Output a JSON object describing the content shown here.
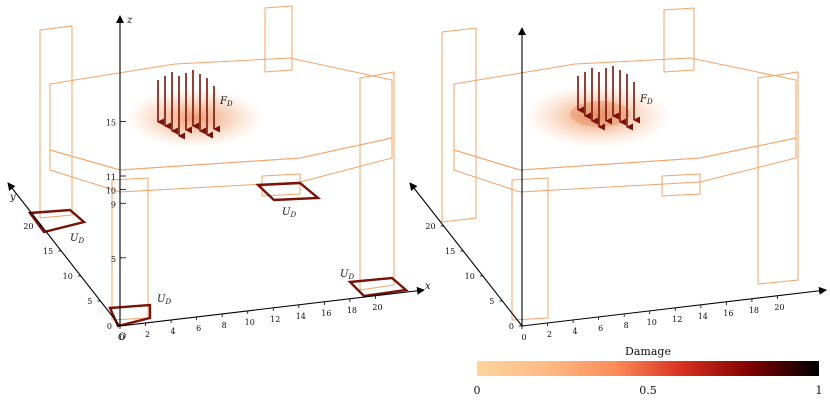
{
  "left_panel": {
    "axis_x_label": "x",
    "axis_y_label": "y",
    "axis_z_label": "z",
    "origin_label": "O",
    "x_ticks": [
      "0",
      "2",
      "4",
      "6",
      "8",
      "10",
      "12",
      "14",
      "16",
      "18",
      "20"
    ],
    "y_ticks": [
      "0",
      "5",
      "10",
      "15",
      "20"
    ],
    "z_ticks": [
      "5",
      "9",
      "10",
      "11",
      "15"
    ],
    "load_label": "F_D",
    "support_label": "U_D"
  },
  "right_panel": {
    "x_ticks": [
      "0",
      "2",
      "4",
      "6",
      "8",
      "10",
      "12",
      "14",
      "16",
      "18",
      "20"
    ],
    "y_ticks": [
      "0",
      "5",
      "10",
      "15",
      "20"
    ],
    "load_label": "F_D"
  },
  "colorbar": {
    "title": "Damage",
    "ticks": [
      "0",
      "0.5",
      "1"
    ],
    "colors": [
      "#fdd49e",
      "#fdbb84",
      "#fc8d59",
      "#d7301f",
      "#7f0000",
      "#000000"
    ]
  },
  "colors": {
    "lattice": "#f6b688",
    "lattice_edge": "#f3a46a",
    "load_arrow": "#7a1208",
    "support": "#7a1208",
    "damage_hotspot": "#e88a5a"
  }
}
